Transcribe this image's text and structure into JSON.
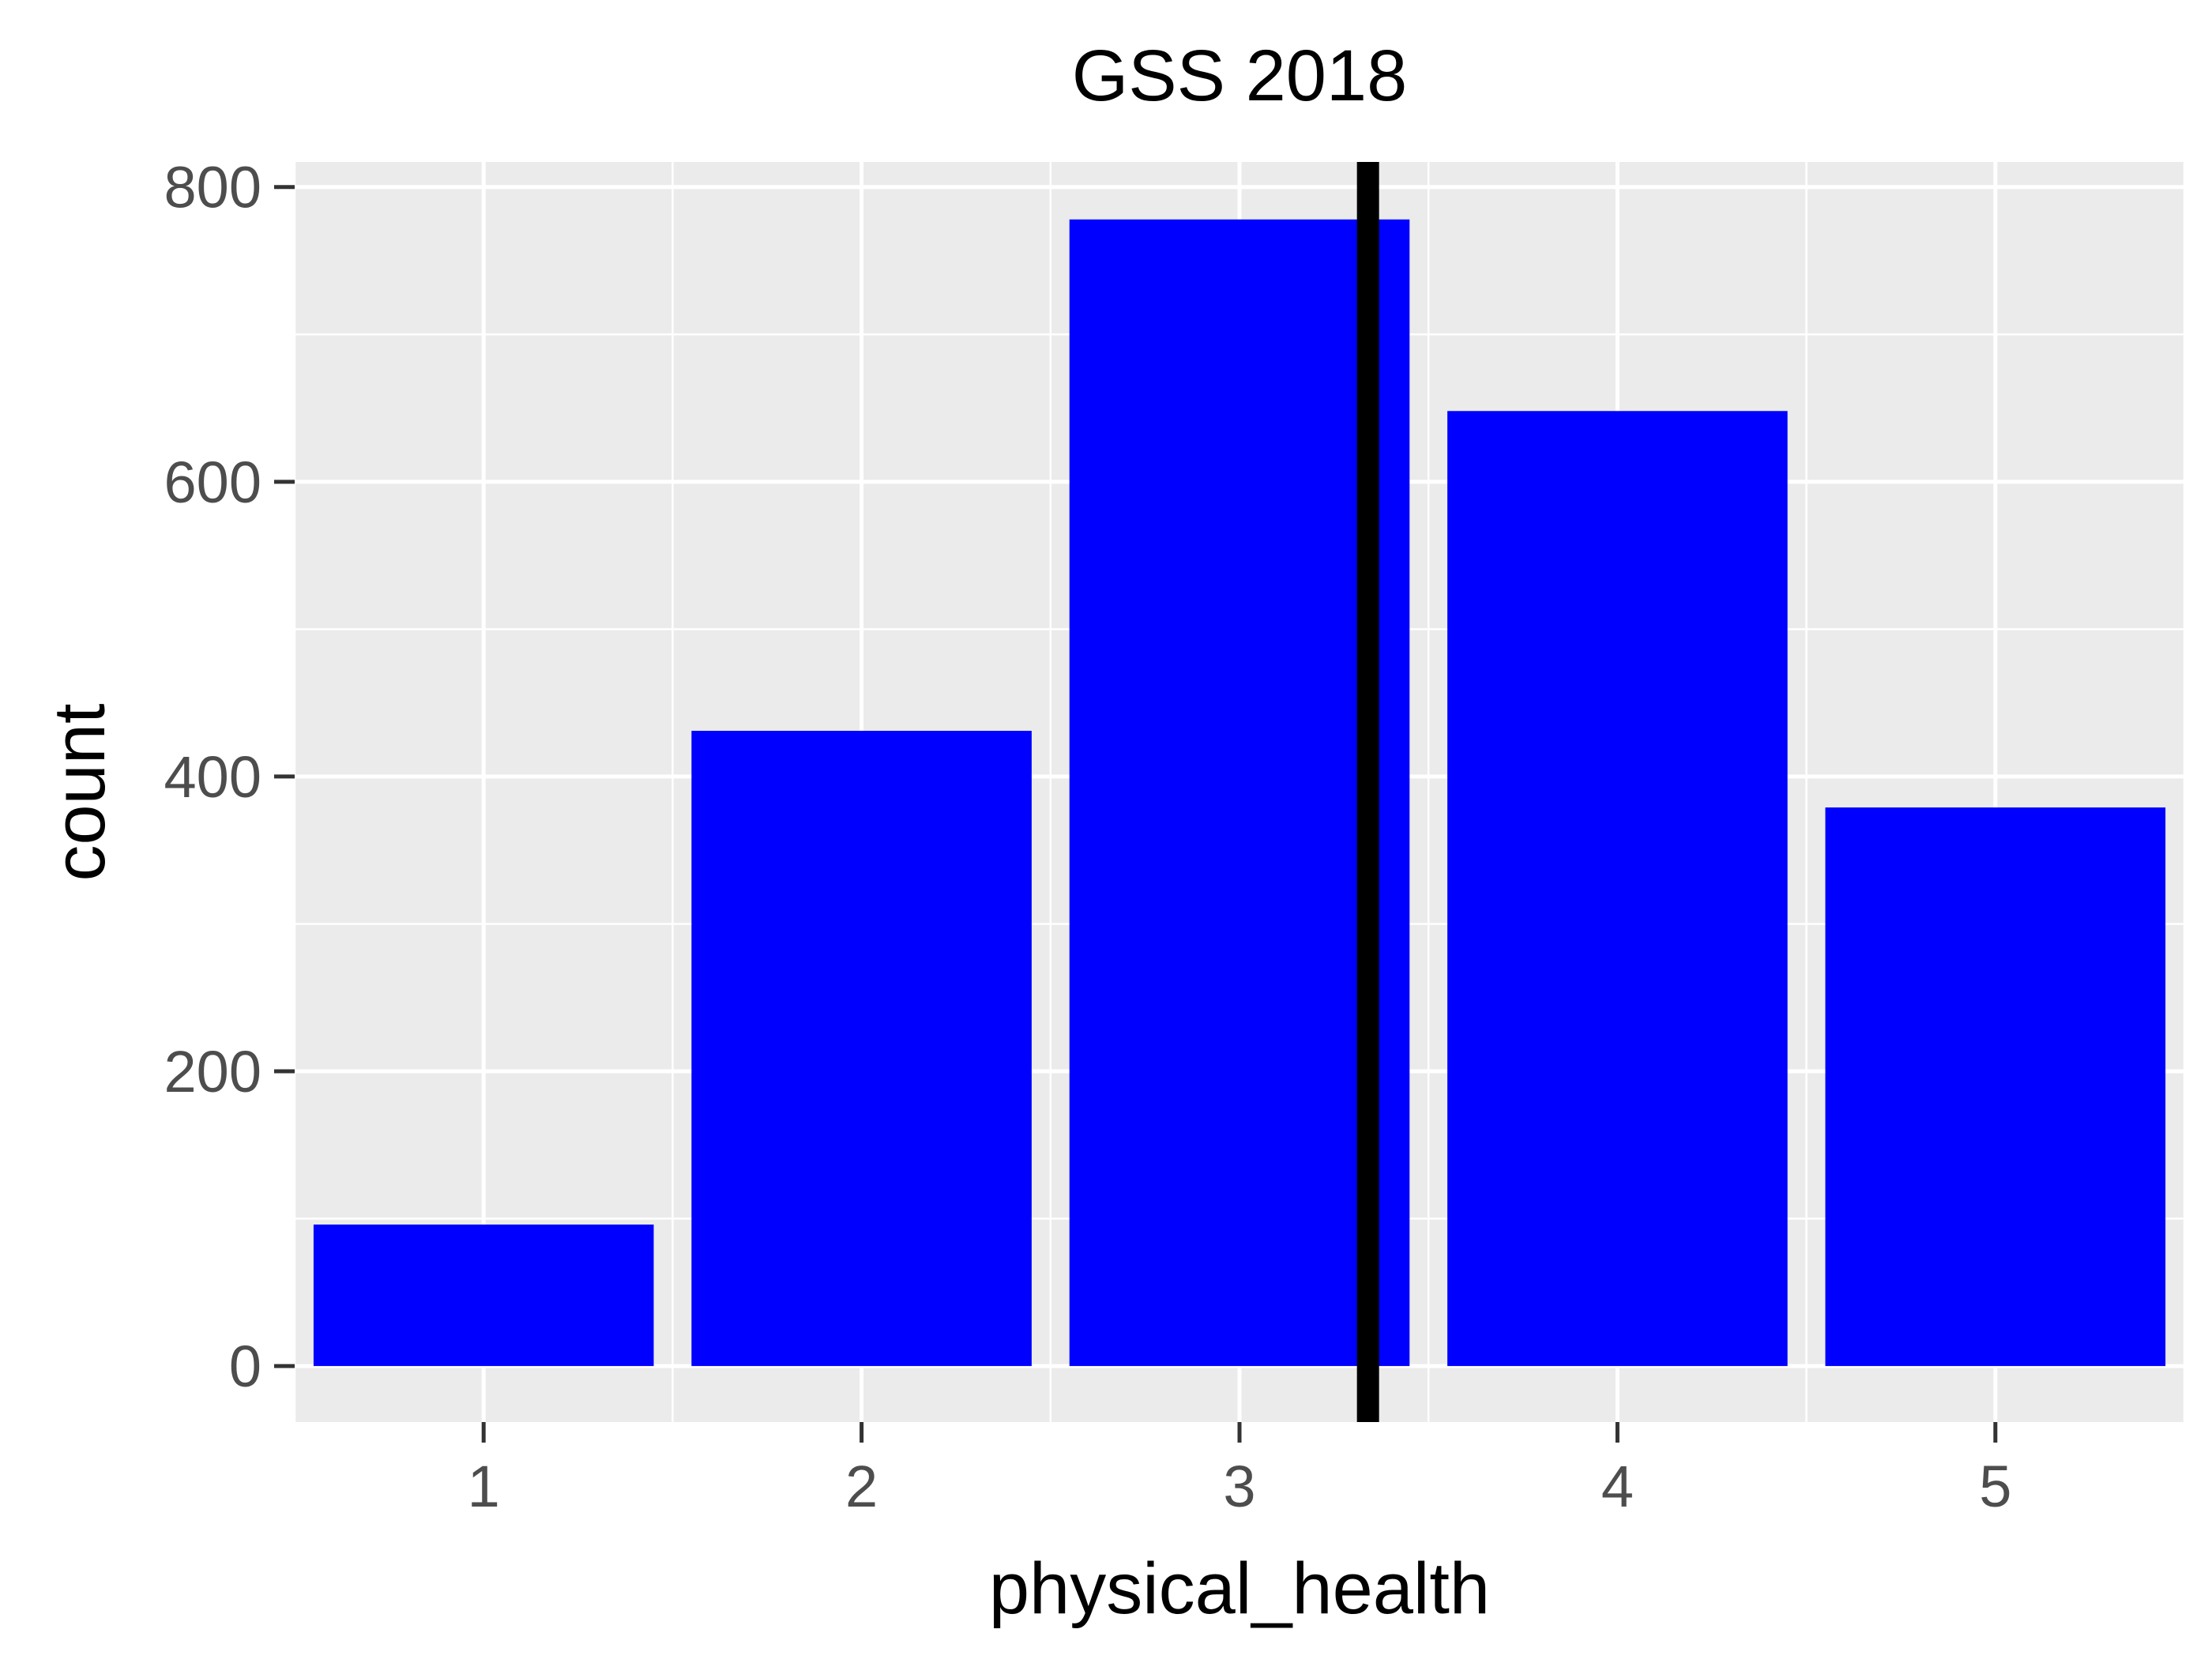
{
  "chart_data": {
    "type": "bar",
    "title": "GSS 2018",
    "xlabel": "physical_health",
    "ylabel": "count",
    "categories": [
      "1",
      "2",
      "3",
      "4",
      "5"
    ],
    "values": [
      96,
      431,
      778,
      648,
      379
    ],
    "ylim": [
      -38,
      817
    ],
    "xlim": [
      0.5,
      5.5
    ],
    "y_ticks": [
      0,
      200,
      400,
      600,
      800
    ],
    "x_ticks": [
      "1",
      "2",
      "3",
      "4",
      "5"
    ],
    "grid": true,
    "bar_color": "#0000ff",
    "panel_background": "#ebebeb",
    "gridline_color": "#ffffff",
    "reference_line": {
      "orientation": "vertical",
      "x": 3.34,
      "color": "#000000"
    }
  }
}
